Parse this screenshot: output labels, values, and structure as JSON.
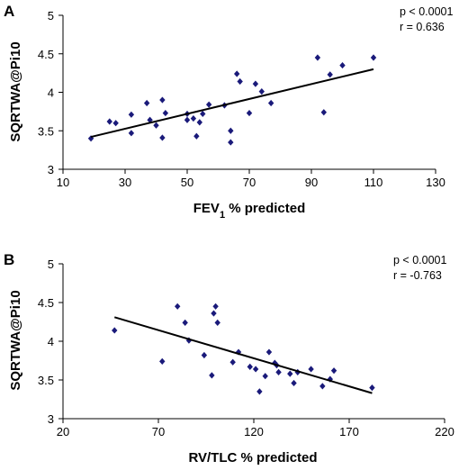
{
  "chart_data": [
    {
      "panel": "A",
      "type": "scatter",
      "xlabel": "FEV1 % predicted",
      "xlabel_main": "FEV",
      "xlabel_sub": "1",
      "xlabel_rest": " % predicted",
      "ylabel": "SQRTWA@Pi10",
      "xlim": [
        10,
        130
      ],
      "ylim": [
        3,
        5
      ],
      "xticks": [
        10,
        30,
        50,
        70,
        90,
        110,
        130
      ],
      "yticks": [
        3,
        3.5,
        4,
        4.5,
        5
      ],
      "annotations": [
        "p < 0.0001",
        "r = 0.636"
      ],
      "trendline": [
        [
          19,
          3.42
        ],
        [
          110,
          4.3
        ]
      ],
      "points": [
        [
          19,
          3.4
        ],
        [
          25,
          3.62
        ],
        [
          27,
          3.6
        ],
        [
          32,
          3.71
        ],
        [
          32,
          3.47
        ],
        [
          37,
          3.86
        ],
        [
          38,
          3.64
        ],
        [
          40,
          3.57
        ],
        [
          42,
          3.9
        ],
        [
          42,
          3.41
        ],
        [
          43,
          3.73
        ],
        [
          50,
          3.72
        ],
        [
          50,
          3.64
        ],
        [
          52,
          3.66
        ],
        [
          53,
          3.43
        ],
        [
          54,
          3.61
        ],
        [
          55,
          3.72
        ],
        [
          57,
          3.84
        ],
        [
          62,
          3.83
        ],
        [
          64,
          3.5
        ],
        [
          64,
          3.35
        ],
        [
          66,
          4.24
        ],
        [
          67,
          4.14
        ],
        [
          70,
          3.73
        ],
        [
          72,
          4.11
        ],
        [
          74,
          4.01
        ],
        [
          77,
          3.86
        ],
        [
          92,
          4.45
        ],
        [
          94,
          3.74
        ],
        [
          96,
          4.23
        ],
        [
          100,
          4.35
        ],
        [
          110,
          4.45
        ]
      ]
    },
    {
      "panel": "B",
      "type": "scatter",
      "xlabel": "RV/TLC % predicted",
      "ylabel": "SQRTWA@Pi10",
      "xlim": [
        20,
        220
      ],
      "ylim": [
        3,
        5
      ],
      "xticks": [
        20,
        70,
        120,
        170,
        220
      ],
      "yticks": [
        3,
        3.5,
        4,
        4.5,
        5
      ],
      "annotations": [
        "p < 0.0001",
        "r = -0.763"
      ],
      "trendline": [
        [
          47,
          4.31
        ],
        [
          182,
          3.33
        ]
      ],
      "points": [
        [
          47,
          4.14
        ],
        [
          72,
          3.74
        ],
        [
          80,
          4.45
        ],
        [
          84,
          4.24
        ],
        [
          86,
          4.01
        ],
        [
          94,
          3.82
        ],
        [
          98,
          3.56
        ],
        [
          99,
          4.36
        ],
        [
          100,
          4.45
        ],
        [
          101,
          4.24
        ],
        [
          109,
          3.73
        ],
        [
          112,
          3.86
        ],
        [
          118,
          3.67
        ],
        [
          121,
          3.64
        ],
        [
          123,
          3.35
        ],
        [
          126,
          3.55
        ],
        [
          128,
          3.86
        ],
        [
          131,
          3.72
        ],
        [
          132,
          3.69
        ],
        [
          133,
          3.6
        ],
        [
          139,
          3.58
        ],
        [
          141,
          3.46
        ],
        [
          143,
          3.6
        ],
        [
          150,
          3.64
        ],
        [
          156,
          3.42
        ],
        [
          160,
          3.51
        ],
        [
          162,
          3.62
        ],
        [
          182,
          3.4
        ]
      ]
    }
  ]
}
